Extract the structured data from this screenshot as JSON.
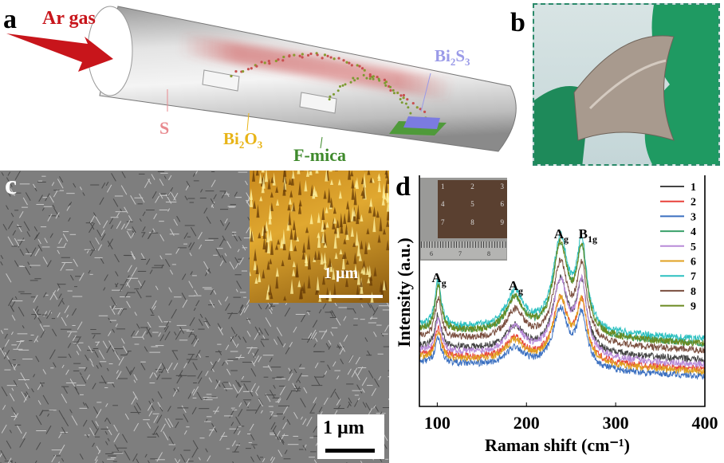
{
  "panels": {
    "a": {
      "label": "a",
      "gas_label": "Ar gas",
      "source_s": "S",
      "source_bi2o3": {
        "base": "Bi",
        "sub1": "2",
        "mid": "O",
        "sub2": "3"
      },
      "product_bi2s3": {
        "base": "Bi",
        "sub1": "2",
        "mid": "S",
        "sub2": "3"
      },
      "substrate": "F-mica",
      "colors": {
        "arrow": "#c8151b",
        "s": "#e88a8f",
        "bi2o3": "#e8b417",
        "bi2s3": "#9a9ae8",
        "mica": "#3f8a2c"
      }
    },
    "b": {
      "label": "b",
      "border_color": "#2a8a6a"
    },
    "c": {
      "label": "c",
      "scale_bar": "1 µm",
      "inset_scale_bar": "1 µm"
    },
    "d": {
      "label": "d",
      "inset_grid_numbers": [
        "1",
        "2",
        "3",
        "4",
        "5",
        "6",
        "7",
        "8",
        "9"
      ],
      "inset_ruler_numbers": [
        "6",
        "7",
        "8"
      ]
    }
  },
  "chart_data": {
    "type": "line",
    "title": "",
    "xlabel": "Raman shift (cm⁻¹)",
    "ylabel": "Intensity (a.u.)",
    "xlim": [
      80,
      400
    ],
    "ylim": [
      0,
      100
    ],
    "xticks": [
      100,
      200,
      300,
      400
    ],
    "grid": false,
    "legend_position": "top-right",
    "peaks": [
      {
        "x": 101,
        "label": "A",
        "sub": "g",
        "width": 4
      },
      {
        "x": 187,
        "label": "A",
        "sub": "g",
        "width": 12
      },
      {
        "x": 238,
        "label": "A",
        "sub": "g",
        "width": 10
      },
      {
        "x": 262,
        "label": "B",
        "sub": "1g",
        "width": 7
      }
    ],
    "series": [
      {
        "name": "1",
        "color": "#444444",
        "baseline": 26,
        "peak_amplitudes": [
          14,
          10,
          30,
          28
        ]
      },
      {
        "name": "2",
        "color": "#e8423a",
        "baseline": 22,
        "peak_amplitudes": [
          12,
          9,
          26,
          24
        ]
      },
      {
        "name": "3",
        "color": "#3a6fc0",
        "baseline": 19,
        "peak_amplitudes": [
          11,
          8,
          25,
          22
        ]
      },
      {
        "name": "4",
        "color": "#3aa06a",
        "baseline": 33,
        "peak_amplitudes": [
          20,
          15,
          38,
          35
        ]
      },
      {
        "name": "5",
        "color": "#b88ad8",
        "baseline": 24,
        "peak_amplitudes": [
          14,
          12,
          32,
          30
        ]
      },
      {
        "name": "6",
        "color": "#e0a020",
        "baseline": 21,
        "peak_amplitudes": [
          12,
          9,
          27,
          25
        ]
      },
      {
        "name": "7",
        "color": "#2cc0c0",
        "baseline": 35,
        "peak_amplitudes": [
          20,
          16,
          39,
          36
        ]
      },
      {
        "name": "8",
        "color": "#7a4e3e",
        "baseline": 30,
        "peak_amplitudes": [
          17,
          13,
          33,
          31
        ]
      },
      {
        "name": "9",
        "color": "#6b8a20",
        "baseline": 33,
        "peak_amplitudes": [
          20,
          15,
          38,
          35
        ]
      }
    ]
  }
}
